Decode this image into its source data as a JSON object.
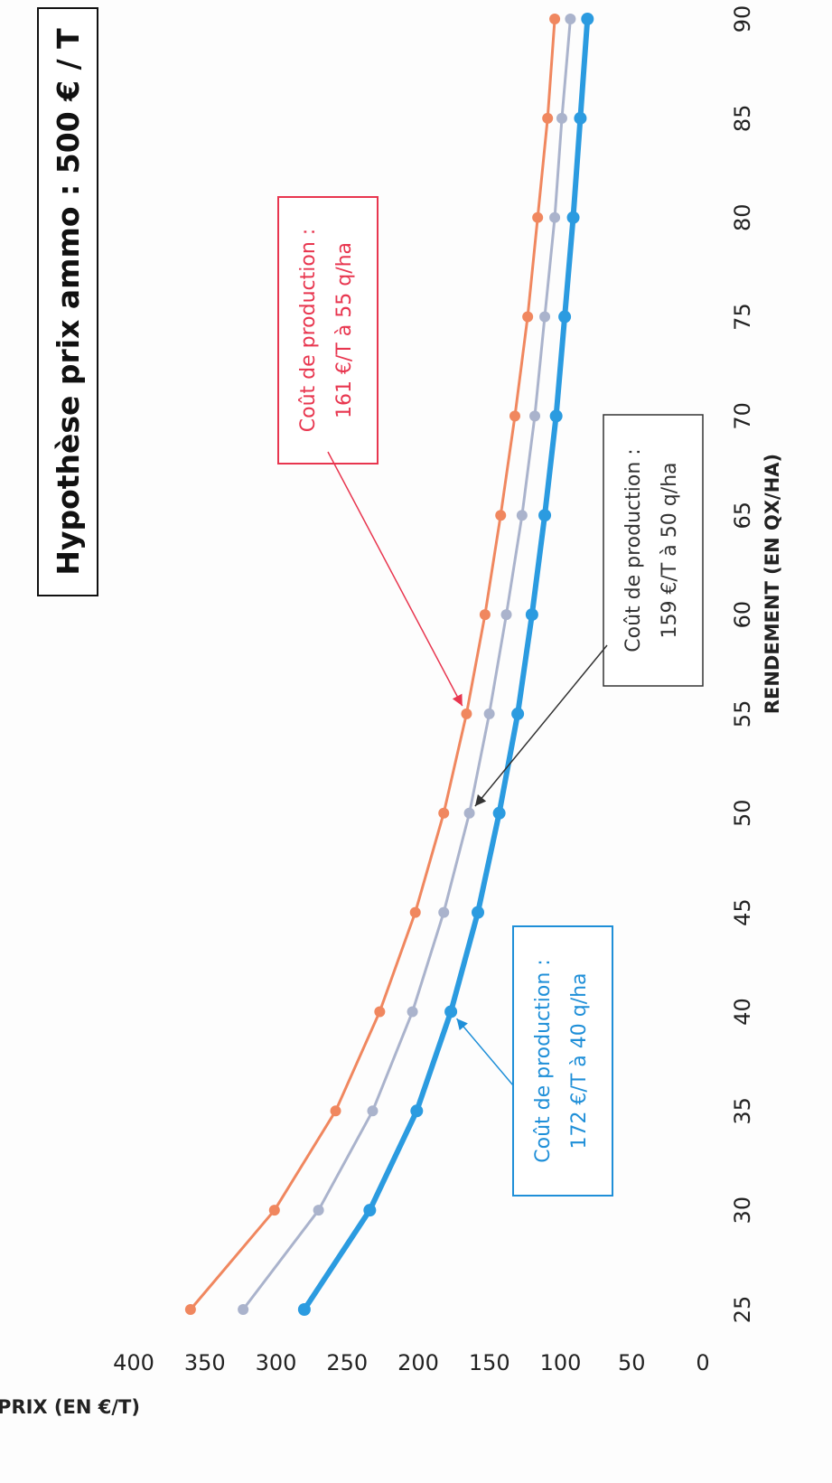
{
  "chart_data": {
    "type": "line",
    "title": "Hypothèse prix ammo : 500 € / T",
    "xlabel": "RENDEMENT (EN QX/HA)",
    "ylabel": "PRIX (EN €/T)",
    "x": [
      25,
      30,
      35,
      40,
      45,
      50,
      55,
      60,
      65,
      70,
      75,
      80,
      85,
      90
    ],
    "xlim": [
      25,
      90
    ],
    "ylim": [
      0,
      400
    ],
    "yticks": [
      0,
      50,
      100,
      150,
      200,
      250,
      300,
      350,
      400
    ],
    "xticks": [
      25,
      30,
      35,
      40,
      45,
      50,
      55,
      60,
      65,
      70,
      75,
      80,
      85,
      90
    ],
    "grid": false,
    "series": [
      {
        "color": "#f0875f",
        "values": [
          355,
          296,
          253,
          222,
          197,
          177,
          161,
          148,
          137,
          127,
          118,
          111,
          104,
          99
        ]
      },
      {
        "color": "#aab3cc",
        "values": [
          318,
          265,
          227,
          199,
          177,
          159,
          145,
          133,
          122,
          113,
          106,
          99,
          94,
          88
        ]
      },
      {
        "color": "#2b9be0",
        "values": [
          275,
          229,
          196,
          172,
          153,
          138,
          125,
          115,
          106,
          98,
          92,
          86,
          81,
          76
        ]
      }
    ],
    "annotations": [
      {
        "line1": "Coût de production :",
        "line2": "161 €/T à 55 q/ha",
        "color": "#e8364f",
        "target_x": 55,
        "target_y": 161
      },
      {
        "line1": "Coût de production :",
        "line2": "159 €/T à 50 q/ha",
        "color": "#333333",
        "target_x": 50,
        "target_y": 159
      },
      {
        "line1": "Coût de production :",
        "line2": "172 €/T à 40 q/ha",
        "color": "#1f8fd8",
        "target_x": 40,
        "target_y": 172
      }
    ]
  }
}
